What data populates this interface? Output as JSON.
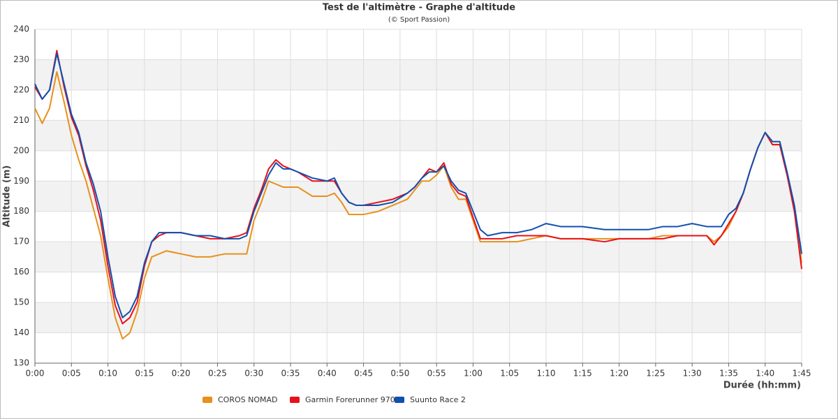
{
  "chart_data": {
    "type": "line",
    "title": "Test de l'altimètre - Graphe d'altitude",
    "subtitle": "(© Sport Passion)",
    "x_label": "Durée (hh:mm)",
    "y_label": "Altitude (m)",
    "grid": true,
    "legend": "bottom",
    "xlim": [
      0,
      105
    ],
    "ylim": [
      130,
      240
    ],
    "xticks": [
      {
        "value": 0,
        "label": "0:00"
      },
      {
        "value": 5,
        "label": "0:05"
      },
      {
        "value": 10,
        "label": "0:10"
      },
      {
        "value": 15,
        "label": "0:15"
      },
      {
        "value": 20,
        "label": "0:20"
      },
      {
        "value": 25,
        "label": "0:25"
      },
      {
        "value": 30,
        "label": "0:30"
      },
      {
        "value": 35,
        "label": "0:35"
      },
      {
        "value": 40,
        "label": "0:40"
      },
      {
        "value": 45,
        "label": "0:45"
      },
      {
        "value": 50,
        "label": "0:50"
      },
      {
        "value": 55,
        "label": "0:55"
      },
      {
        "value": 60,
        "label": "1:00"
      },
      {
        "value": 65,
        "label": "1:05"
      },
      {
        "value": 70,
        "label": "1:10"
      },
      {
        "value": 75,
        "label": "1:15"
      },
      {
        "value": 80,
        "label": "1:20"
      },
      {
        "value": 85,
        "label": "1:25"
      },
      {
        "value": 90,
        "label": "1:30"
      },
      {
        "value": 95,
        "label": "1:35"
      },
      {
        "value": 100,
        "label": "1:40"
      },
      {
        "value": 105,
        "label": "1:45"
      }
    ],
    "yticks": [
      130,
      140,
      150,
      160,
      170,
      180,
      190,
      200,
      210,
      220,
      230,
      240
    ],
    "x": [
      0,
      1,
      2,
      3,
      4,
      5,
      6,
      7,
      8,
      9,
      10,
      11,
      12,
      13,
      14,
      15,
      16,
      17,
      18,
      20,
      22,
      24,
      26,
      28,
      29,
      30,
      31,
      32,
      33,
      34,
      35,
      36,
      38,
      40,
      41,
      42,
      43,
      44,
      45,
      47,
      49,
      51,
      52,
      53,
      54,
      55,
      56,
      57,
      58,
      59,
      60,
      61,
      62,
      64,
      66,
      68,
      70,
      72,
      75,
      78,
      80,
      82,
      84,
      86,
      88,
      90,
      92,
      93,
      94,
      95,
      96,
      97,
      98,
      99,
      100,
      101,
      102,
      103,
      104,
      105
    ],
    "series": [
      {
        "name": "COROS NOMAD",
        "color": "#e8901a",
        "values": [
          214,
          209,
          214,
          226,
          216,
          205,
          197,
          190,
          181,
          172,
          158,
          145,
          138,
          140,
          147,
          158,
          165,
          166,
          167,
          166,
          165,
          165,
          166,
          166,
          166,
          177,
          183,
          190,
          189,
          188,
          188,
          188,
          185,
          185,
          186,
          183,
          179,
          179,
          179,
          180,
          182,
          184,
          187,
          190,
          190,
          192,
          195,
          188,
          184,
          184,
          177,
          170,
          170,
          170,
          170,
          171,
          172,
          171,
          171,
          171,
          171,
          171,
          171,
          172,
          172,
          172,
          172,
          170,
          172,
          175,
          180,
          186,
          194,
          201,
          206,
          202,
          202,
          192,
          181,
          163
        ]
      },
      {
        "name": "Garmin Forerunner 970",
        "color": "#e8101a",
        "values": [
          221,
          217,
          220,
          233,
          221,
          211,
          205,
          195,
          187,
          177,
          162,
          149,
          143,
          145,
          150,
          162,
          170,
          172,
          173,
          173,
          172,
          171,
          171,
          172,
          173,
          181,
          187,
          194,
          197,
          195,
          194,
          193,
          190,
          190,
          190,
          186,
          183,
          182,
          182,
          183,
          184,
          186,
          188,
          191,
          194,
          193,
          196,
          189,
          186,
          185,
          178,
          171,
          171,
          171,
          172,
          172,
          172,
          171,
          171,
          170,
          171,
          171,
          171,
          171,
          172,
          172,
          172,
          169,
          172,
          176,
          180,
          186,
          194,
          201,
          206,
          202,
          202,
          192,
          180,
          161
        ]
      },
      {
        "name": "Suunto Race 2",
        "color": "#1050b0",
        "values": [
          222,
          217,
          220,
          232,
          222,
          212,
          206,
          196,
          189,
          180,
          165,
          152,
          145,
          147,
          152,
          163,
          170,
          173,
          173,
          173,
          172,
          172,
          171,
          171,
          172,
          180,
          186,
          192,
          196,
          194,
          194,
          193,
          191,
          190,
          191,
          186,
          183,
          182,
          182,
          182,
          183,
          186,
          188,
          191,
          193,
          193,
          195,
          190,
          187,
          186,
          180,
          174,
          172,
          173,
          173,
          174,
          176,
          175,
          175,
          174,
          174,
          174,
          174,
          175,
          175,
          176,
          175,
          175,
          175,
          179,
          181,
          186,
          194,
          201,
          206,
          203,
          203,
          193,
          182,
          166
        ]
      }
    ]
  }
}
